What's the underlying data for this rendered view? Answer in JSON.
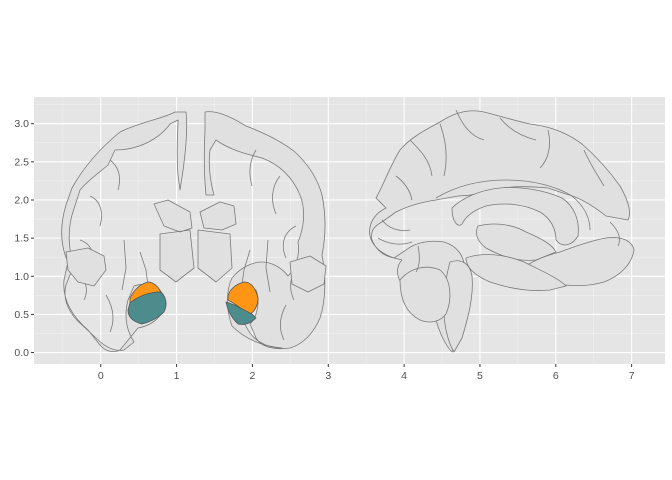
{
  "chart_data": {
    "type": "brain-atlas",
    "title": "",
    "xlabel": "",
    "ylabel": "",
    "xlim": [
      -0.88,
      7.44
    ],
    "ylim": [
      -0.15,
      3.35
    ],
    "x_ticks": [
      "0",
      "1",
      "2",
      "3",
      "4",
      "5",
      "6",
      "7"
    ],
    "y_ticks": [
      "0.0",
      "0.5",
      "1.0",
      "1.5",
      "2.0",
      "2.5",
      "3.0"
    ],
    "grid": true,
    "panel_background": "#e5e5e5",
    "views": [
      "coronal",
      "sagittal"
    ],
    "highlighted_regions": [
      {
        "hemisphere": "left",
        "color": "#ff9514",
        "centroid": [
          0.6,
          0.82
        ]
      },
      {
        "hemisphere": "left",
        "color": "#4d8c8c",
        "centroid": [
          0.55,
          0.62
        ]
      },
      {
        "hemisphere": "right",
        "color": "#ff9514",
        "centroid": [
          1.9,
          0.76
        ]
      },
      {
        "hemisphere": "right",
        "color": "#4d8c8c",
        "centroid": [
          1.9,
          0.6
        ]
      }
    ],
    "background_region_color": "#e0e0e0"
  }
}
